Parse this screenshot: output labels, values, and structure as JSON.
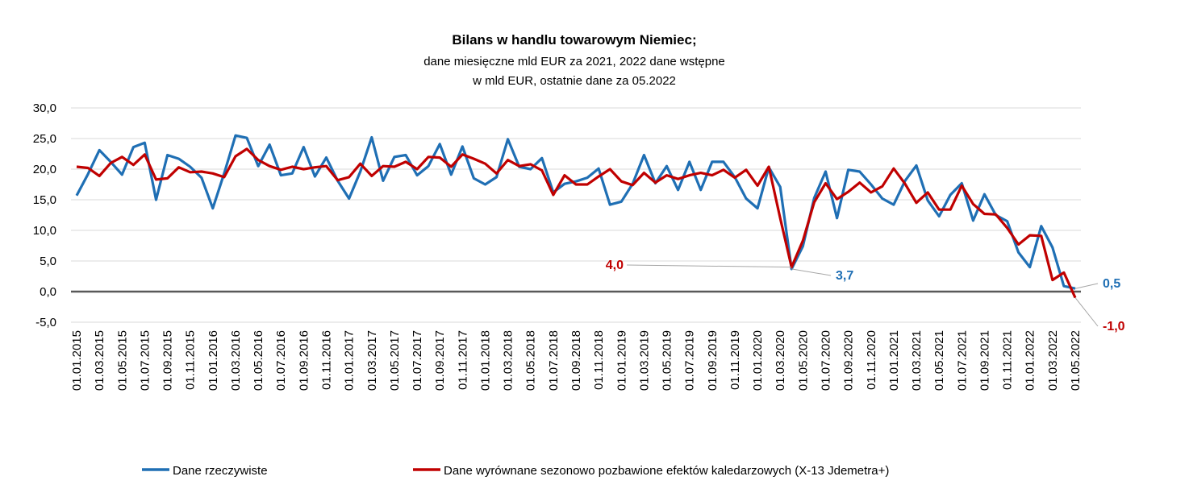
{
  "chart_data": {
    "type": "line",
    "title": "Bilans w handlu towarowym Niemiec;",
    "subtitle_lines": [
      "dane miesięczne mld EUR za 2021, 2022 dane wstępne",
      "w mld EUR, ostatnie dane za 05.2022"
    ],
    "ylim": [
      -5,
      30
    ],
    "yticks": [
      -5,
      0,
      5,
      10,
      15,
      20,
      25,
      30
    ],
    "ytick_labels": [
      "-5,0",
      "0,0",
      "5,0",
      "10,0",
      "15,0",
      "20,0",
      "25,0",
      "30,0"
    ],
    "grid": true,
    "legend_position": "bottom",
    "x_tick_labels": [
      "01.01.2015",
      "01.03.2015",
      "01.05.2015",
      "01.07.2015",
      "01.09.2015",
      "01.11.2015",
      "01.01.2016",
      "01.03.2016",
      "01.05.2016",
      "01.07.2016",
      "01.09.2016",
      "01.11.2016",
      "01.01.2017",
      "01.03.2017",
      "01.05.2017",
      "01.07.2017",
      "01.09.2017",
      "01.11.2017",
      "01.01.2018",
      "01.03.2018",
      "01.05.2018",
      "01.07.2018",
      "01.09.2018",
      "01.11.2018",
      "01.01.2019",
      "01.03.2019",
      "01.05.2019",
      "01.07.2019",
      "01.09.2019",
      "01.11.2019",
      "01.01.2020",
      "01.03.2020",
      "01.05.2020",
      "01.07.2020",
      "01.09.2020",
      "01.11.2020",
      "01.01.2021",
      "01.03.2021",
      "01.05.2021",
      "01.07.2021",
      "01.09.2021",
      "01.11.2021",
      "01.01.2022",
      "01.03.2022",
      "01.05.2022"
    ],
    "series": [
      {
        "name": "Dane rzeczywiste",
        "color": "#1f6fb4",
        "values": [
          15.7,
          19.2,
          23.1,
          21.2,
          19.1,
          23.6,
          24.3,
          15.0,
          22.3,
          21.7,
          20.4,
          18.6,
          13.6,
          19.3,
          25.5,
          25.1,
          20.5,
          24.0,
          19.0,
          19.3,
          23.6,
          18.8,
          21.9,
          18.1,
          15.2,
          19.6,
          25.2,
          18.1,
          22.0,
          22.3,
          19.0,
          20.5,
          24.1,
          19.1,
          23.7,
          18.5,
          17.5,
          18.7,
          24.9,
          20.4,
          20.0,
          21.8,
          16.2,
          17.6,
          18.0,
          18.6,
          20.1,
          14.2,
          14.7,
          17.6,
          22.3,
          17.7,
          20.5,
          16.6,
          21.2,
          16.6,
          21.2,
          21.2,
          18.7,
          15.2,
          13.6,
          20.3,
          17.1,
          3.7,
          7.4,
          15.3,
          19.6,
          12.0,
          19.9,
          19.6,
          17.5,
          15.2,
          14.2,
          18.1,
          20.6,
          14.9,
          12.3,
          15.8,
          17.7,
          11.6,
          15.9,
          12.5,
          11.5,
          6.4,
          4.0,
          10.7,
          7.2,
          0.9,
          0.5
        ]
      },
      {
        "name": "Dane wyrównane sezonowo pozbawione efektów kaledarzowych (X-13 Jdemetra+)",
        "color": "#c00000",
        "values": [
          20.4,
          20.2,
          18.9,
          21.0,
          22.0,
          20.7,
          22.4,
          18.3,
          18.5,
          20.3,
          19.5,
          19.6,
          19.3,
          18.7,
          22.1,
          23.3,
          21.5,
          20.5,
          19.9,
          20.4,
          20.0,
          20.3,
          20.5,
          18.2,
          18.7,
          20.9,
          18.9,
          20.5,
          20.4,
          21.2,
          20.0,
          22.0,
          21.9,
          20.4,
          22.4,
          21.7,
          20.9,
          19.3,
          21.5,
          20.5,
          20.8,
          19.8,
          15.8,
          19.0,
          17.5,
          17.5,
          18.8,
          20.0,
          18.0,
          17.4,
          19.4,
          17.8,
          19.0,
          18.4,
          19.0,
          19.4,
          19.0,
          19.9,
          18.6,
          19.9,
          17.3,
          20.4,
          12.0,
          4.0,
          8.3,
          14.6,
          17.7,
          15.1,
          16.3,
          17.8,
          16.2,
          17.2,
          20.1,
          17.6,
          14.5,
          16.2,
          13.4,
          13.4,
          17.3,
          14.3,
          12.7,
          12.6,
          10.4,
          7.7,
          9.2,
          9.1,
          1.9,
          3.1,
          -1.0
        ]
      }
    ],
    "annotations": [
      {
        "label": "4,0",
        "series": 1,
        "index": 63,
        "color": "#c00000"
      },
      {
        "label": "3,7",
        "series": 0,
        "index": 63,
        "color": "#1f6fb4"
      },
      {
        "label": "0,5",
        "series": 0,
        "index": 88,
        "color": "#1f6fb4"
      },
      {
        "label": "-1,0",
        "series": 1,
        "index": 88,
        "color": "#c00000"
      }
    ]
  }
}
